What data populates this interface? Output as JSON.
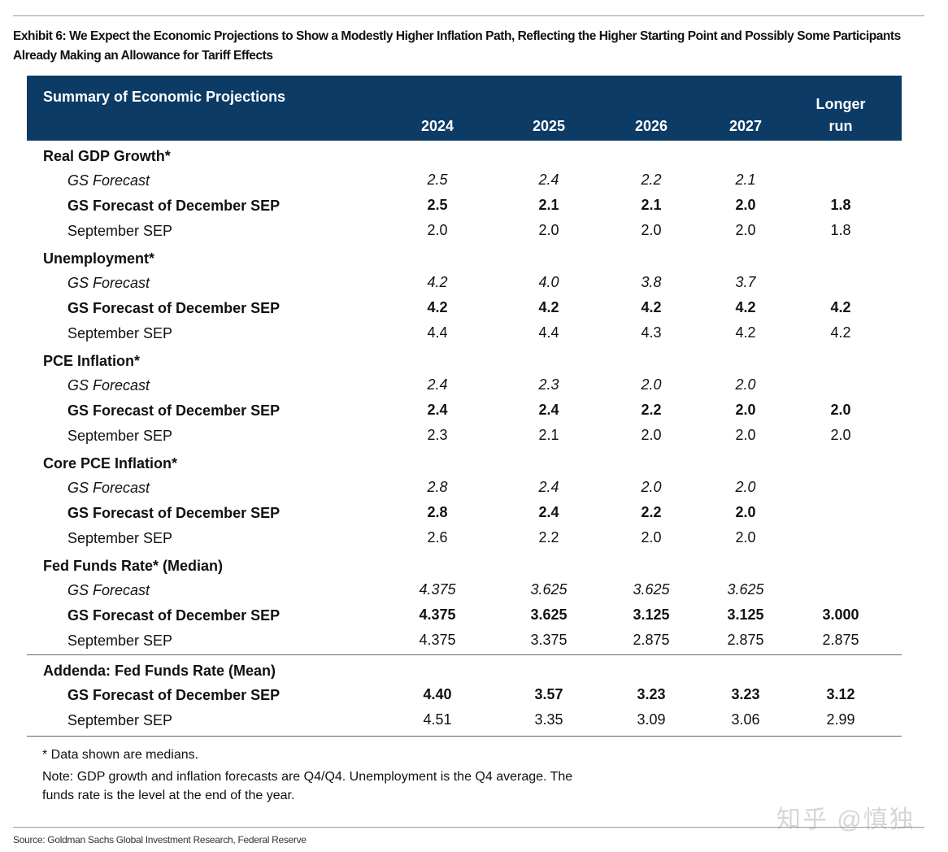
{
  "exhibit_title": "Exhibit 6: We Expect the Economic Projections to Show a Modestly Higher Inflation Path, Reflecting the Higher Starting Point and Possibly Some Participants Already Making an Allowance for Tariff Effects",
  "table": {
    "title": "Summary of Economic Projections",
    "years": [
      "2024",
      "2025",
      "2026",
      "2027"
    ],
    "longer_line1": "Longer",
    "longer_line2": "run",
    "header_color": "#0c3b66",
    "sections": [
      {
        "label": "Real GDP Growth*",
        "rows": [
          {
            "label": "GS Forecast",
            "style": "gs",
            "values": [
              "2.5",
              "2.4",
              "2.2",
              "2.1",
              ""
            ]
          },
          {
            "label": "GS Forecast of December SEP",
            "style": "dec",
            "values": [
              "2.5",
              "2.1",
              "2.1",
              "2.0",
              "1.8"
            ]
          },
          {
            "label": "September SEP",
            "style": "sep",
            "values": [
              "2.0",
              "2.0",
              "2.0",
              "2.0",
              "1.8"
            ]
          }
        ]
      },
      {
        "label": "Unemployment*",
        "rows": [
          {
            "label": "GS Forecast",
            "style": "gs",
            "values": [
              "4.2",
              "4.0",
              "3.8",
              "3.7",
              ""
            ]
          },
          {
            "label": "GS Forecast of December SEP",
            "style": "dec",
            "values": [
              "4.2",
              "4.2",
              "4.2",
              "4.2",
              "4.2"
            ]
          },
          {
            "label": "September SEP",
            "style": "sep",
            "values": [
              "4.4",
              "4.4",
              "4.3",
              "4.2",
              "4.2"
            ]
          }
        ]
      },
      {
        "label": "PCE Inflation*",
        "rows": [
          {
            "label": "GS Forecast",
            "style": "gs",
            "values": [
              "2.4",
              "2.3",
              "2.0",
              "2.0",
              ""
            ]
          },
          {
            "label": "GS Forecast of December SEP",
            "style": "dec",
            "values": [
              "2.4",
              "2.4",
              "2.2",
              "2.0",
              "2.0"
            ]
          },
          {
            "label": "September SEP",
            "style": "sep",
            "values": [
              "2.3",
              "2.1",
              "2.0",
              "2.0",
              "2.0"
            ]
          }
        ]
      },
      {
        "label": "Core PCE Inflation*",
        "rows": [
          {
            "label": "GS Forecast",
            "style": "gs",
            "values": [
              "2.8",
              "2.4",
              "2.0",
              "2.0",
              ""
            ]
          },
          {
            "label": "GS Forecast of December SEP",
            "style": "dec",
            "values": [
              "2.8",
              "2.4",
              "2.2",
              "2.0",
              ""
            ]
          },
          {
            "label": "September SEP",
            "style": "sep",
            "values": [
              "2.6",
              "2.2",
              "2.0",
              "2.0",
              ""
            ]
          }
        ]
      },
      {
        "label": "Fed Funds Rate* (Median)",
        "rows": [
          {
            "label": "GS Forecast",
            "style": "gs",
            "values": [
              "4.375",
              "3.625",
              "3.625",
              "3.625",
              ""
            ]
          },
          {
            "label": "GS Forecast of December SEP",
            "style": "dec",
            "values": [
              "4.375",
              "3.625",
              "3.125",
              "3.125",
              "3.000"
            ]
          },
          {
            "label": "September SEP",
            "style": "sep",
            "values": [
              "4.375",
              "3.375",
              "2.875",
              "2.875",
              "2.875"
            ]
          }
        ]
      }
    ],
    "addenda": {
      "label": "Addenda: Fed Funds Rate (Mean)",
      "rows": [
        {
          "label": "GS Forecast of December SEP",
          "style": "dec",
          "values": [
            "4.40",
            "3.57",
            "3.23",
            "3.23",
            "3.12"
          ]
        },
        {
          "label": "September SEP",
          "style": "sep",
          "values": [
            "4.51",
            "3.35",
            "3.09",
            "3.06",
            "2.99"
          ]
        }
      ]
    }
  },
  "footnote_1": "* Data shown are medians.",
  "footnote_2_line1": "Note: GDP growth and inflation forecasts are Q4/Q4.  Unemployment is the Q4 average.  The",
  "footnote_2_line2": "funds rate is the level at the end of the year.",
  "watermark": "知乎 @慎独",
  "source": "Source: Goldman Sachs Global Investment Research, Federal Reserve"
}
